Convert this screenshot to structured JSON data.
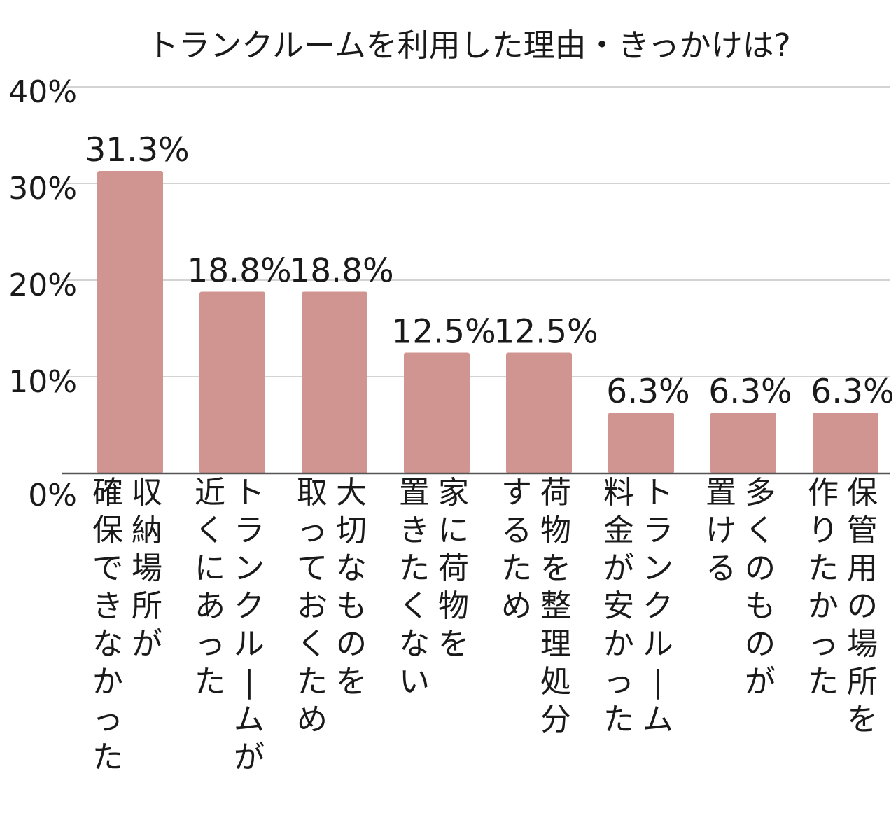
{
  "chart_data": {
    "type": "bar",
    "title": "トランクルームを利用した理由・きっかけは?",
    "xlabel": "",
    "ylabel": "",
    "ylim": [
      0,
      40
    ],
    "yticks": [
      0,
      10,
      20,
      30,
      40
    ],
    "ytick_labels": [
      "0%",
      "10%",
      "20%",
      "30%",
      "40%"
    ],
    "grid": true,
    "legend": "none",
    "bar_color": "#d09590",
    "categories": [
      [
        "収納場所が",
        "確保できなかった"
      ],
      [
        "トランクルームが",
        "近くにあった"
      ],
      [
        "大切なものを",
        "取っておくため"
      ],
      [
        "家に荷物を",
        "置きたくない"
      ],
      [
        "荷物を整理処分",
        "するため"
      ],
      [
        "トランクルーム",
        "料金が安かった"
      ],
      [
        "多くのものが",
        "置ける"
      ],
      [
        "保管用の場所を",
        "作りたかった"
      ]
    ],
    "values": [
      31.3,
      18.8,
      18.8,
      12.5,
      12.5,
      6.3,
      6.3,
      6.3
    ],
    "data_labels": [
      "31.3%",
      "18.8%",
      "18.8%",
      "12.5%",
      "12.5%",
      "6.3%",
      "6.3%",
      "6.3%"
    ]
  }
}
